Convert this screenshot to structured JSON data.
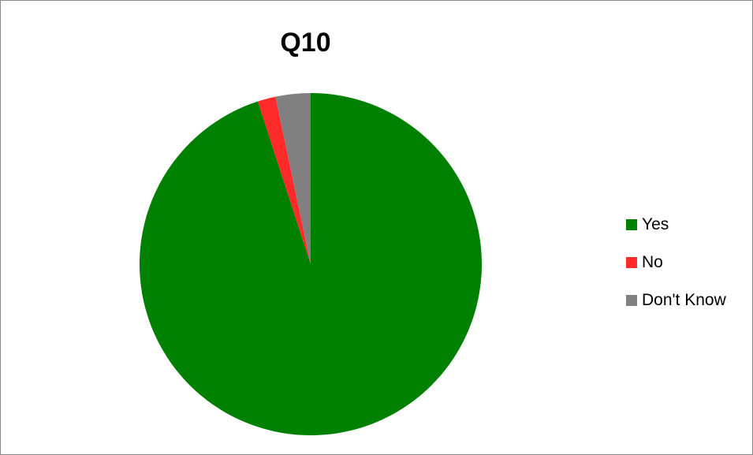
{
  "chart_data": {
    "type": "pie",
    "title": "Q10",
    "categories": [
      "Yes",
      "No",
      "Don't Know"
    ],
    "values": [
      95,
      1.7,
      3.3
    ],
    "colors": [
      "#008000",
      "#ff2b2b",
      "#808080"
    ],
    "legend_position": "right"
  }
}
